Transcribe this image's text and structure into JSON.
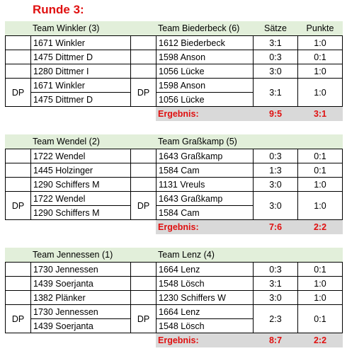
{
  "title": "Runde 3:",
  "blocks": [
    {
      "header": {
        "team_a": "Team Winkler (3)",
        "team_b": "Team Biederbeck (6)",
        "saetze": "Sätze",
        "punkte": "Punkte"
      },
      "singles": [
        {
          "player_a": "1671 Winkler",
          "player_b": "1612 Biederbeck",
          "saetze": "3:1",
          "punkte": "1:0"
        },
        {
          "player_a": "1475 Dittmer D",
          "player_b": "1598 Anson",
          "saetze": "0:3",
          "punkte": "0:1"
        },
        {
          "player_a": "1280 Dittmer I",
          "player_b": "1056 Lücke",
          "saetze": "3:0",
          "punkte": "1:0"
        }
      ],
      "doubles": {
        "label_a": "DP",
        "players_a": [
          "1671 Winkler",
          "1475 Dittmer D"
        ],
        "label_b": "DP",
        "players_b": [
          "1598 Anson",
          "1056 Lücke"
        ],
        "saetze": "3:1",
        "punkte": "1:0"
      },
      "result": {
        "label": "Ergebnis:",
        "saetze": "9:5",
        "punkte": "3:1"
      }
    },
    {
      "header": {
        "team_a": "Team Wendel (2)",
        "team_b": "Team Graßkamp (5)"
      },
      "singles": [
        {
          "player_a": "1722 Wendel",
          "player_b": "1643 Graßkamp",
          "saetze": "0:3",
          "punkte": "0:1"
        },
        {
          "player_a": "1445 Holzinger",
          "player_b": "1584 Cam",
          "saetze": "1:3",
          "punkte": "0:1"
        },
        {
          "player_a": "1290 Schiffers M",
          "player_b": "1131 Vreuls",
          "saetze": "3:0",
          "punkte": "1:0"
        }
      ],
      "doubles": {
        "label_a": "DP",
        "players_a": [
          "1722 Wendel",
          "1290 Schiffers M"
        ],
        "label_b": "DP",
        "players_b": [
          "1643 Graßkamp",
          "1584 Cam"
        ],
        "saetze": "3:0",
        "punkte": "1:0"
      },
      "result": {
        "label": "Ergebnis:",
        "saetze": "7:6",
        "punkte": "2:2"
      }
    },
    {
      "header": {
        "team_a": "Team Jennessen (1)",
        "team_b": "Team Lenz (4)"
      },
      "singles": [
        {
          "player_a": "1730 Jennessen",
          "player_b": "1664 Lenz",
          "saetze": "0:3",
          "punkte": "0:1"
        },
        {
          "player_a": "1439 Soerjanta",
          "player_b": "1548 Lösch",
          "saetze": "3:1",
          "punkte": "1:0"
        },
        {
          "player_a": "1382 Plänker",
          "player_b": "1230 Schiffers W",
          "saetze": "3:0",
          "punkte": "1:0"
        }
      ],
      "doubles": {
        "label_a": "DP",
        "players_a": [
          "1730 Jennessen",
          "1439 Soerjanta"
        ],
        "label_b": "DP",
        "players_b": [
          "1664 Lenz",
          "1548 Lösch"
        ],
        "saetze": "2:3",
        "punkte": "0:1"
      },
      "result": {
        "label": "Ergebnis:",
        "saetze": "8:7",
        "punkte": "2:2"
      }
    }
  ]
}
